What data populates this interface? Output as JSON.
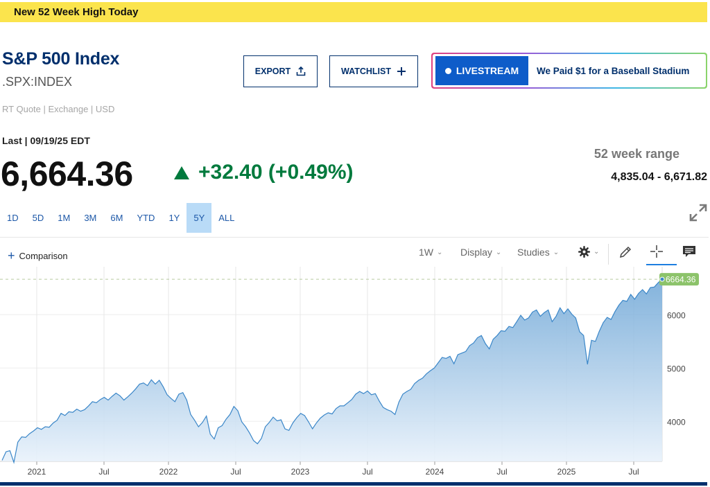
{
  "banner": {
    "text": "New 52 Week High Today"
  },
  "header": {
    "title": "S&P 500 Index",
    "symbol": ".SPX:INDEX",
    "quote_meta": "RT Quote | Exchange | USD"
  },
  "buttons": {
    "export": "EXPORT",
    "watchlist": "WATCHLIST"
  },
  "promo": {
    "live_label": "LIVESTREAM",
    "headline": "We Paid $1 for a Baseball Stadium"
  },
  "quote": {
    "last_label": "Last | 09/19/25 EDT",
    "price": "6,664.36",
    "change": "+32.40 (+0.49%)",
    "range_label": "52 week range",
    "range_value": "4,835.04 - 6,671.82"
  },
  "periods": [
    "1D",
    "5D",
    "1M",
    "3M",
    "6M",
    "YTD",
    "1Y",
    "5Y",
    "ALL"
  ],
  "active_period": "5Y",
  "toolbar": {
    "comparison": "Comparison",
    "interval": "1W",
    "display": "Display",
    "studies": "Studies"
  },
  "icons": [
    "upload-icon",
    "plus-icon",
    "expand-icon",
    "gear-icon",
    "pencil-icon",
    "crosshair-icon",
    "comment-icon"
  ],
  "colors": {
    "accent": "#002f6c",
    "positive": "#007a3d",
    "line": "#3a86c8",
    "banner": "#fbe44d",
    "last_marker": "#8cc36a"
  },
  "chart_data": {
    "type": "area",
    "x_ticks": [
      "2021",
      "Jul",
      "2022",
      "Jul",
      "2023",
      "Jul",
      "2024",
      "Jul",
      "2025",
      "Jul"
    ],
    "y_ticks": [
      4000,
      5000,
      6000
    ],
    "ylim": [
      3250,
      6900
    ],
    "last_value_label": "6664.36",
    "last_value": 6664.36,
    "series": [
      {
        "values": [
          3270,
          3430,
          3450,
          3230,
          3610,
          3710,
          3700,
          3770,
          3820,
          3880,
          3850,
          3900,
          3890,
          3970,
          4020,
          4150,
          4110,
          4180,
          4170,
          4230,
          4190,
          4220,
          4290,
          4370,
          4350,
          4410,
          4450,
          4400,
          4470,
          4530,
          4480,
          4400,
          4460,
          4530,
          4610,
          4700,
          4720,
          4670,
          4780,
          4700,
          4770,
          4650,
          4500,
          4430,
          4370,
          4510,
          4540,
          4400,
          4130,
          4020,
          3900,
          3980,
          4100,
          3760,
          3670,
          3880,
          3920,
          4040,
          4130,
          4280,
          4200,
          3990,
          3900,
          3780,
          3640,
          3580,
          3680,
          3900,
          3980,
          4080,
          4010,
          4030,
          3860,
          3830,
          3970,
          4070,
          4150,
          4110,
          3990,
          3860,
          3970,
          4060,
          4120,
          4160,
          4140,
          4240,
          4290,
          4290,
          4350,
          4410,
          4510,
          4560,
          4520,
          4570,
          4500,
          4520,
          4380,
          4260,
          4220,
          4190,
          4130,
          4360,
          4510,
          4560,
          4600,
          4710,
          4770,
          4810,
          4890,
          4950,
          5000,
          5100,
          5200,
          5180,
          5220,
          5080,
          5250,
          5280,
          5310,
          5420,
          5470,
          5570,
          5610,
          5460,
          5360,
          5540,
          5610,
          5700,
          5690,
          5780,
          5760,
          5870,
          5990,
          5900,
          5940,
          6050,
          6090,
          5970,
          6040,
          6090,
          5870,
          5970,
          6130,
          6020,
          6110,
          6010,
          5940,
          5680,
          5610,
          5070,
          5520,
          5500,
          5690,
          5850,
          5950,
          5910,
          6060,
          6180,
          6270,
          6250,
          6380,
          6290,
          6400,
          6470,
          6390,
          6510,
          6520,
          6600,
          6664.36
        ]
      }
    ]
  }
}
